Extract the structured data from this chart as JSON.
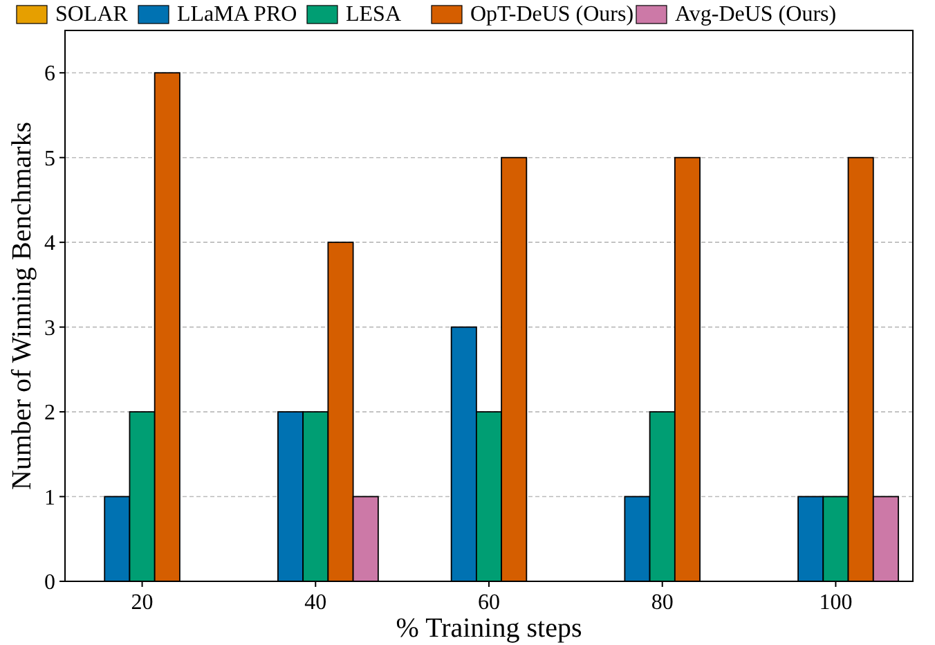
{
  "chart_data": {
    "type": "bar",
    "xlabel": "% Training steps",
    "ylabel": "Number of Winning Benchmarks",
    "categories": [
      "20",
      "40",
      "60",
      "80",
      "100"
    ],
    "series": [
      {
        "name": "SOLAR",
        "color": "#e69f00",
        "values": [
          0,
          0,
          0,
          0,
          0
        ]
      },
      {
        "name": "LLaMA PRO",
        "color": "#0072b2",
        "values": [
          1,
          2,
          3,
          1,
          1
        ]
      },
      {
        "name": "LESA",
        "color": "#009e73",
        "values": [
          2,
          2,
          2,
          2,
          1
        ]
      },
      {
        "name": "OpT-DeUS (Ours)",
        "color": "#d55e00",
        "values": [
          6,
          4,
          5,
          5,
          5
        ]
      },
      {
        "name": "Avg-DeUS (Ours)",
        "color": "#cc79a7",
        "values": [
          0,
          1,
          0,
          0,
          1
        ]
      }
    ],
    "ylim": [
      0,
      6.5
    ],
    "yticks": [
      0,
      1,
      2,
      3,
      4,
      5,
      6
    ],
    "grid": "y",
    "legend": "top"
  }
}
